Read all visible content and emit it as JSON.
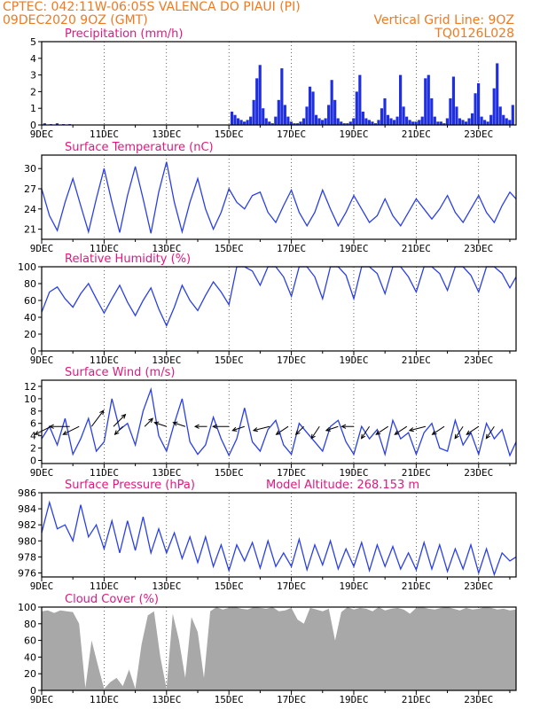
{
  "header": {
    "line1": "CPTEC:   042:11W-06:05S   VALENCA DO PIAUI (PI)",
    "line2_left": "09DEC2020 9OZ (GMT)",
    "line2_right": "Vertical Grid Line: 9OZ",
    "line3_right": "TQ0126L028"
  },
  "x_axis": {
    "date_labels": [
      "9DEC",
      "11DEC",
      "13DEC",
      "15DEC",
      "17DEC",
      "19DEC",
      "21DEC",
      "23DEC"
    ],
    "range_days": [
      0,
      15.2
    ]
  },
  "colors": {
    "line": "#2a3fe8",
    "precip": "#1f2fe0",
    "cloud": "#a8a8a8",
    "title": "#e0187f",
    "header": "#ee7a22"
  },
  "chart_data": [
    {
      "type": "bar",
      "title": "Precipitation (mm/h)",
      "ylim": [
        0,
        5
      ],
      "yticks": [
        0,
        1,
        2,
        3,
        4,
        5
      ],
      "x_unit": "days since 09DEC 09Z",
      "x": [
        0.1,
        0.3,
        0.5,
        0.7,
        0.9,
        6.1,
        6.2,
        6.3,
        6.4,
        6.5,
        6.6,
        6.7,
        6.8,
        6.9,
        7.0,
        7.1,
        7.2,
        7.3,
        7.4,
        7.5,
        7.6,
        7.7,
        7.8,
        7.9,
        8.0,
        8.1,
        8.2,
        8.3,
        8.4,
        8.5,
        8.6,
        8.7,
        8.8,
        8.9,
        9.0,
        9.1,
        9.2,
        9.3,
        9.4,
        9.5,
        9.6,
        9.7,
        9.8,
        9.9,
        10.0,
        10.1,
        10.2,
        10.3,
        10.4,
        10.5,
        10.6,
        10.7,
        10.8,
        10.9,
        11.0,
        11.1,
        11.2,
        11.3,
        11.4,
        11.5,
        11.6,
        11.7,
        11.8,
        11.9,
        12.0,
        12.1,
        12.2,
        12.3,
        12.4,
        12.5,
        12.6,
        12.7,
        12.8,
        12.9,
        13.0,
        13.1,
        13.2,
        13.3,
        13.4,
        13.5,
        13.6,
        13.7,
        13.8,
        13.9,
        14.0,
        14.1,
        14.2,
        14.3,
        14.4,
        14.5,
        14.6,
        14.7,
        14.8,
        14.9,
        15.0,
        15.1
      ],
      "values": [
        0.1,
        0.05,
        0.1,
        0.05,
        0.05,
        0.8,
        0.6,
        0.4,
        0.3,
        0.2,
        0.3,
        0.5,
        1.5,
        2.8,
        3.6,
        1.0,
        0.4,
        0.2,
        0.1,
        0.5,
        1.5,
        3.4,
        1.2,
        0.5,
        0.2,
        0.1,
        0.1,
        0.2,
        0.4,
        1.1,
        2.3,
        2.0,
        0.6,
        0.4,
        0.3,
        0.4,
        1.2,
        2.7,
        1.5,
        0.4,
        0.2,
        0.1,
        0.1,
        0.2,
        0.4,
        2.0,
        3.0,
        0.8,
        0.4,
        0.3,
        0.2,
        0.1,
        0.3,
        1.0,
        1.6,
        0.6,
        0.4,
        0.3,
        0.5,
        3.0,
        1.1,
        0.5,
        0.3,
        0.2,
        0.2,
        0.3,
        0.5,
        2.8,
        3.0,
        1.6,
        0.5,
        0.2,
        0.2,
        0.1,
        0.4,
        1.6,
        2.9,
        1.1,
        0.4,
        0.3,
        0.2,
        0.4,
        0.7,
        1.9,
        2.5,
        0.5,
        0.3,
        0.2,
        0.6,
        2.2,
        3.7,
        1.1,
        0.6,
        0.4,
        0.3,
        1.2
      ]
    },
    {
      "type": "line",
      "title": "Surface Temperature (nC)",
      "ylim": [
        19.5,
        32
      ],
      "yticks": [
        21,
        24,
        27,
        30
      ],
      "x": [
        0,
        0.25,
        0.5,
        0.75,
        1,
        1.25,
        1.5,
        1.75,
        2,
        2.25,
        2.5,
        2.75,
        3,
        3.25,
        3.5,
        3.75,
        4,
        4.25,
        4.5,
        4.75,
        5,
        5.25,
        5.5,
        5.75,
        6,
        6.25,
        6.5,
        6.75,
        7,
        7.25,
        7.5,
        7.75,
        8,
        8.25,
        8.5,
        8.75,
        9,
        9.25,
        9.5,
        9.75,
        10,
        10.25,
        10.5,
        10.75,
        11,
        11.25,
        11.5,
        11.75,
        12,
        12.25,
        12.5,
        12.75,
        13,
        13.25,
        13.5,
        13.75,
        14,
        14.25,
        14.5,
        14.75,
        15,
        15.2
      ],
      "values": [
        27.0,
        23.0,
        20.8,
        25.0,
        28.5,
        24.5,
        20.6,
        25.5,
        30.0,
        25.0,
        20.5,
        26.0,
        30.3,
        25.5,
        20.4,
        26.5,
        31.0,
        25.0,
        20.6,
        25.0,
        28.5,
        24.0,
        21.0,
        23.5,
        27.0,
        25.0,
        24.0,
        26.0,
        26.5,
        23.5,
        22.0,
        24.5,
        26.8,
        23.5,
        21.5,
        23.5,
        26.8,
        24.0,
        21.5,
        23.5,
        26.0,
        24.0,
        22.0,
        23.0,
        25.5,
        23.0,
        21.5,
        23.5,
        25.5,
        24.0,
        22.5,
        24.0,
        26.0,
        23.5,
        22.0,
        24.0,
        26.0,
        23.5,
        22.0,
        24.5,
        26.5,
        25.5
      ]
    },
    {
      "type": "line",
      "title": "Relative Humidity (%)",
      "ylim": [
        0,
        100
      ],
      "yticks": [
        0,
        20,
        40,
        60,
        80,
        100
      ],
      "x": [
        0,
        0.25,
        0.5,
        0.75,
        1,
        1.25,
        1.5,
        1.75,
        2,
        2.25,
        2.5,
        2.75,
        3,
        3.25,
        3.5,
        3.75,
        4,
        4.25,
        4.5,
        4.75,
        5,
        5.25,
        5.5,
        5.75,
        6,
        6.25,
        6.5,
        6.75,
        7,
        7.25,
        7.5,
        7.75,
        8,
        8.25,
        8.5,
        8.75,
        9,
        9.25,
        9.5,
        9.75,
        10,
        10.25,
        10.5,
        10.75,
        11,
        11.25,
        11.5,
        11.75,
        12,
        12.25,
        12.5,
        12.75,
        13,
        13.25,
        13.5,
        13.75,
        14,
        14.25,
        14.5,
        14.75,
        15,
        15.2
      ],
      "values": [
        46,
        70,
        76,
        62,
        52,
        68,
        80,
        62,
        45,
        62,
        78,
        58,
        42,
        60,
        75,
        50,
        30,
        52,
        78,
        60,
        48,
        66,
        82,
        70,
        55,
        100,
        100,
        95,
        78,
        100,
        100,
        88,
        65,
        100,
        100,
        88,
        62,
        100,
        100,
        90,
        62,
        100,
        100,
        92,
        68,
        100,
        100,
        88,
        70,
        100,
        100,
        92,
        72,
        100,
        100,
        90,
        70,
        100,
        100,
        92,
        75,
        88
      ]
    },
    {
      "type": "line",
      "title": "Surface Wind (m/s)",
      "ylim": [
        -0.5,
        13
      ],
      "yticks": [
        0,
        2,
        4,
        6,
        8,
        10,
        12
      ],
      "x": [
        0,
        0.25,
        0.5,
        0.75,
        1,
        1.25,
        1.5,
        1.75,
        2,
        2.25,
        2.5,
        2.75,
        3,
        3.25,
        3.5,
        3.75,
        4,
        4.25,
        4.5,
        4.75,
        5,
        5.25,
        5.5,
        5.75,
        6,
        6.25,
        6.5,
        6.75,
        7,
        7.25,
        7.5,
        7.75,
        8,
        8.25,
        8.5,
        8.75,
        9,
        9.25,
        9.5,
        9.75,
        10,
        10.25,
        10.5,
        10.75,
        11,
        11.25,
        11.5,
        11.75,
        12,
        12.25,
        12.5,
        12.75,
        13,
        13.25,
        13.5,
        13.75,
        14,
        14.25,
        14.5,
        14.75,
        15,
        15.2
      ],
      "values": [
        3.5,
        5.5,
        2.5,
        6.8,
        1.0,
        3.5,
        6.8,
        1.5,
        3.0,
        10.0,
        5.0,
        6.0,
        2.5,
        8.0,
        11.5,
        4.0,
        1.5,
        6.0,
        10.0,
        3.0,
        1.0,
        2.5,
        7.0,
        3.5,
        0.8,
        3.5,
        8.5,
        3.0,
        1.5,
        5.0,
        6.5,
        2.5,
        1.0,
        6.0,
        4.5,
        3.0,
        1.5,
        5.5,
        6.5,
        3.0,
        1.0,
        5.5,
        3.5,
        5.0,
        1.0,
        6.5,
        3.5,
        4.5,
        1.0,
        4.5,
        6.0,
        2.0,
        1.5,
        6.5,
        2.5,
        4.5,
        1.0,
        6.0,
        3.5,
        5.0,
        0.8,
        3.0
      ],
      "arrows_x": [
        0.3,
        0.9,
        1.2,
        1.6,
        2.3,
        2.6,
        3.3,
        4.0,
        4.6,
        5.3,
        6.0,
        6.5,
        7.3,
        7.9,
        8.4,
        8.9,
        9.5,
        10.0,
        10.5,
        11.1,
        11.7,
        12.3,
        12.9,
        13.5,
        14.0,
        14.5
      ],
      "arrows_u": [
        -2,
        -2.5,
        -2,
        1.5,
        1.5,
        -1,
        1,
        -1.5,
        -1.5,
        -1.5,
        -2,
        -1.5,
        -2,
        -1.5,
        -1,
        -1,
        -1.5,
        -1.5,
        -1,
        -1.5,
        -1.5,
        -2,
        -1.5,
        -1,
        -1.5,
        -1
      ],
      "arrows_v": [
        -1,
        0,
        -1,
        2,
        1.5,
        -1,
        1,
        0.5,
        0.5,
        0,
        0,
        -0.5,
        -0.5,
        -1,
        -1,
        -1.5,
        -0.5,
        0,
        -1.5,
        -1,
        -1,
        -0.5,
        -1,
        -1.5,
        -1,
        -1.5
      ]
    },
    {
      "type": "line",
      "title": "Surface Pressure (hPa)",
      "annotation": "Model Altitude: 268.153 m",
      "ylim": [
        975.5,
        986
      ],
      "yticks": [
        976,
        978,
        980,
        982,
        984,
        986
      ],
      "x": [
        0,
        0.25,
        0.5,
        0.75,
        1,
        1.25,
        1.5,
        1.75,
        2,
        2.25,
        2.5,
        2.75,
        3,
        3.25,
        3.5,
        3.75,
        4,
        4.25,
        4.5,
        4.75,
        5,
        5.25,
        5.5,
        5.75,
        6,
        6.25,
        6.5,
        6.75,
        7,
        7.25,
        7.5,
        7.75,
        8,
        8.25,
        8.5,
        8.75,
        9,
        9.25,
        9.5,
        9.75,
        10,
        10.25,
        10.5,
        10.75,
        11,
        11.25,
        11.5,
        11.75,
        12,
        12.25,
        12.5,
        12.75,
        13,
        13.25,
        13.5,
        13.75,
        14,
        14.25,
        14.5,
        14.75,
        15,
        15.2
      ],
      "values": [
        981.0,
        984.8,
        981.5,
        982.0,
        980.0,
        984.5,
        980.5,
        982.0,
        979.0,
        982.5,
        978.5,
        982.5,
        978.8,
        983.0,
        978.5,
        981.5,
        978.5,
        981.0,
        977.8,
        980.5,
        977.3,
        980.5,
        976.8,
        979.5,
        976.3,
        979.5,
        977.5,
        979.8,
        976.6,
        980.0,
        976.8,
        978.5,
        976.8,
        980.2,
        976.4,
        979.5,
        977.0,
        980.0,
        976.5,
        979.0,
        976.8,
        979.8,
        976.3,
        979.5,
        976.8,
        979.3,
        976.5,
        978.5,
        976.4,
        979.8,
        976.5,
        979.5,
        976.2,
        979.0,
        976.5,
        979.5,
        976.0,
        979.0,
        975.8,
        978.5,
        977.5,
        978.0
      ]
    },
    {
      "type": "area",
      "title": "Cloud Cover (%)",
      "ylim": [
        0,
        100
      ],
      "yticks": [
        0,
        20,
        40,
        60,
        80,
        100
      ],
      "x": [
        0,
        0.2,
        0.4,
        0.6,
        0.8,
        1.0,
        1.2,
        1.4,
        1.6,
        1.8,
        2.0,
        2.2,
        2.4,
        2.6,
        2.8,
        3.0,
        3.2,
        3.4,
        3.6,
        3.8,
        4.0,
        4.2,
        4.4,
        4.6,
        4.8,
        5.0,
        5.2,
        5.4,
        5.6,
        5.8,
        6.0,
        6.2,
        6.4,
        6.6,
        6.8,
        7.0,
        7.2,
        7.4,
        7.6,
        7.8,
        8.0,
        8.2,
        8.4,
        8.6,
        8.8,
        9.0,
        9.2,
        9.4,
        9.6,
        9.8,
        10.0,
        10.2,
        10.4,
        10.6,
        10.8,
        11.0,
        11.2,
        11.4,
        11.6,
        11.8,
        12.0,
        12.2,
        12.4,
        12.6,
        12.8,
        13.0,
        13.2,
        13.4,
        13.6,
        13.8,
        14.0,
        14.2,
        14.4,
        14.6,
        14.8,
        15.0,
        15.2
      ],
      "values": [
        95,
        96,
        93,
        96,
        95,
        94,
        80,
        3,
        60,
        30,
        2,
        10,
        15,
        5,
        25,
        2,
        55,
        90,
        95,
        40,
        2,
        92,
        60,
        15,
        88,
        70,
        15,
        95,
        100,
        97,
        99,
        100,
        98,
        97,
        100,
        99,
        98,
        100,
        95,
        96,
        99,
        85,
        80,
        99,
        97,
        95,
        98,
        60,
        94,
        100,
        97,
        99,
        98,
        95,
        100,
        96,
        98,
        99,
        97,
        92,
        99,
        100,
        98,
        97,
        99,
        100,
        98,
        96,
        99,
        97,
        98,
        100,
        99,
        97,
        98,
        96,
        97
      ]
    }
  ]
}
